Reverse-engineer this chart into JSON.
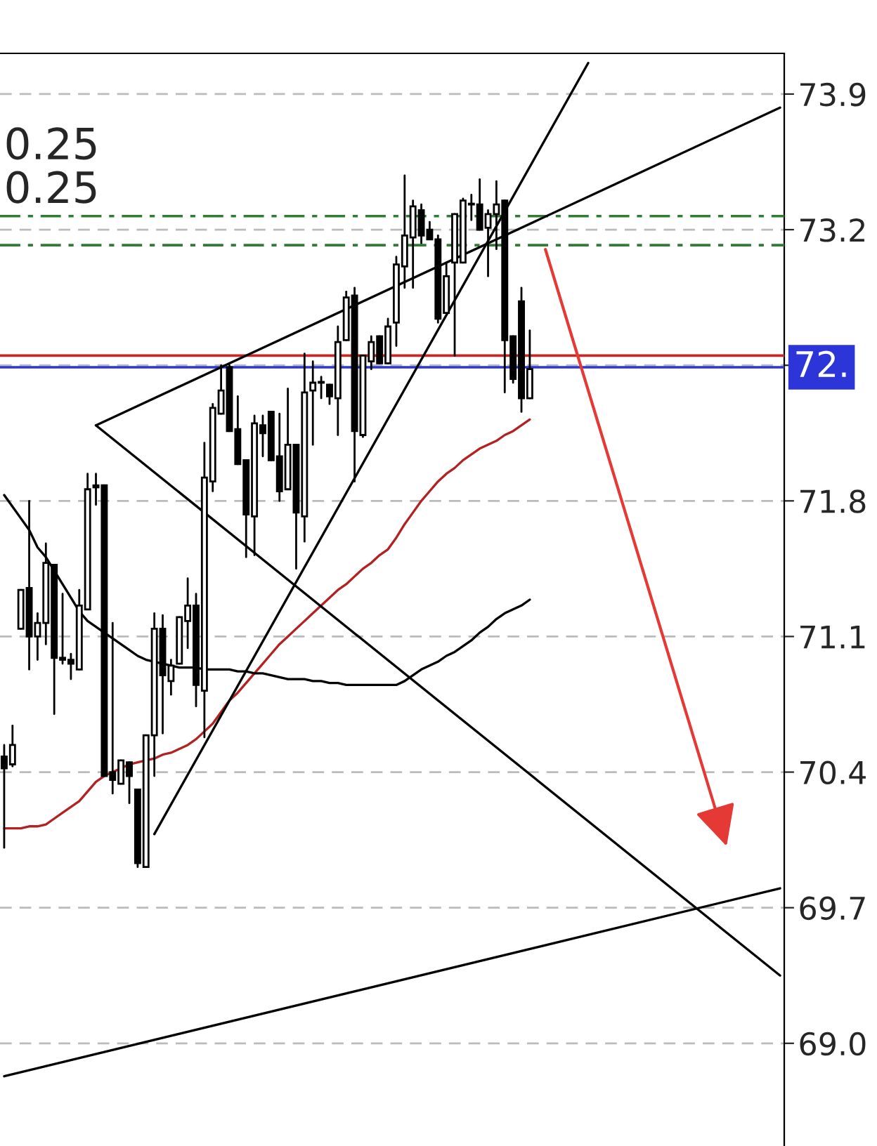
{
  "chart_data": {
    "type": "candlestick",
    "categories": [
      null,
      null,
      null,
      null,
      null,
      null,
      null,
      null,
      null,
      null,
      null,
      null,
      null,
      null,
      null,
      null,
      null,
      null,
      null,
      null,
      null,
      null,
      null,
      null,
      null,
      null,
      null,
      null,
      null,
      null,
      null,
      null,
      null,
      null,
      null,
      null,
      null,
      null,
      null,
      null,
      null,
      null,
      null,
      null,
      null,
      null,
      null,
      null,
      null,
      null,
      null,
      null,
      null,
      null,
      null,
      null,
      null,
      null,
      null,
      null,
      null,
      null,
      null,
      null,
      null,
      null,
      null,
      null,
      null,
      null,
      null,
      null,
      null,
      null,
      null,
      null,
      null,
      null,
      null,
      null,
      null,
      null,
      null,
      null,
      null,
      null,
      null,
      null,
      null,
      null,
      null,
      null,
      null,
      null
    ],
    "ohlc": [
      [
        70.48,
        70.54,
        70.01,
        70.42
      ],
      [
        70.44,
        70.64,
        70.43,
        70.54
      ],
      [
        71.14,
        71.34,
        71.14,
        71.34
      ],
      [
        71.35,
        71.8,
        70.93,
        71.1
      ],
      [
        71.1,
        71.22,
        70.98,
        71.17
      ],
      [
        71.17,
        71.58,
        71.06,
        71.48
      ],
      [
        71.47,
        71.47,
        70.7,
        70.99
      ],
      [
        70.99,
        71.32,
        70.96,
        70.98
      ],
      [
        70.98,
        71.01,
        70.88,
        70.96
      ],
      [
        70.93,
        71.34,
        70.93,
        71.26
      ],
      [
        71.24,
        71.94,
        71.24,
        71.86
      ],
      [
        71.87,
        71.94,
        71.78,
        71.88
      ],
      [
        71.88,
        71.88,
        70.38,
        70.38
      ],
      [
        70.4,
        71.17,
        70.29,
        70.36
      ],
      [
        70.34,
        70.46,
        70.34,
        70.46
      ],
      [
        70.45,
        70.45,
        70.24,
        70.38
      ],
      [
        70.31,
        70.31,
        69.91,
        69.93
      ],
      [
        69.91,
        70.59,
        69.91,
        70.59
      ],
      [
        70.59,
        71.22,
        70.38,
        71.14
      ],
      [
        71.14,
        71.21,
        70.6,
        70.9
      ],
      [
        70.87,
        70.98,
        70.8,
        70.95
      ],
      [
        70.96,
        71.2,
        70.96,
        71.2
      ],
      [
        71.18,
        71.4,
        71.04,
        71.26
      ],
      [
        71.26,
        71.32,
        70.74,
        70.85
      ],
      [
        70.82,
        72.1,
        70.58,
        71.92
      ],
      [
        71.9,
        72.3,
        71.85,
        72.28
      ],
      [
        72.25,
        72.5,
        72.25,
        72.37
      ],
      [
        72.49,
        72.5,
        72.16,
        72.16
      ],
      [
        72.17,
        72.34,
        71.99,
        71.99
      ],
      [
        72.01,
        72.01,
        71.51,
        71.73
      ],
      [
        71.72,
        72.24,
        71.52,
        72.2
      ],
      [
        72.19,
        72.24,
        72.03,
        72.15
      ],
      [
        72.26,
        72.26,
        72.01,
        72.01
      ],
      [
        72.03,
        72.25,
        71.8,
        71.85
      ],
      [
        71.86,
        72.38,
        71.86,
        72.09
      ],
      [
        72.09,
        72.09,
        71.45,
        71.74
      ],
      [
        71.72,
        72.56,
        71.59,
        72.36
      ],
      [
        72.37,
        72.52,
        72.09,
        72.41
      ],
      [
        72.41,
        72.44,
        72.33,
        72.41
      ],
      [
        72.4,
        72.4,
        72.3,
        72.34
      ],
      [
        72.33,
        72.7,
        72.14,
        72.62
      ],
      [
        72.63,
        72.88,
        72.63,
        72.85
      ],
      [
        72.86,
        72.9,
        71.9,
        72.16
      ],
      [
        72.14,
        72.55,
        72.13,
        72.55
      ],
      [
        72.52,
        72.65,
        72.48,
        72.62
      ],
      [
        72.65,
        72.65,
        72.51,
        72.51
      ],
      [
        72.51,
        72.74,
        72.51,
        72.7
      ],
      [
        72.72,
        73.06,
        72.6,
        73.02
      ],
      [
        73.01,
        73.48,
        72.9,
        73.17
      ],
      [
        73.16,
        73.35,
        72.9,
        73.32
      ],
      [
        73.3,
        73.33,
        73.13,
        73.17
      ],
      [
        73.2,
        73.24,
        73.15,
        73.15
      ],
      [
        73.15,
        73.17,
        72.72,
        72.74
      ],
      [
        72.77,
        73.03,
        72.77,
        72.96
      ],
      [
        73.03,
        73.28,
        72.55,
        73.28
      ],
      [
        73.03,
        73.36,
        73.03,
        73.35
      ],
      [
        73.33,
        73.38,
        73.25,
        73.33
      ],
      [
        73.33,
        73.46,
        73.2,
        73.2
      ],
      [
        73.21,
        73.3,
        72.96,
        73.28
      ],
      [
        73.28,
        73.45,
        73.1,
        73.33
      ],
      [
        73.35,
        73.35,
        72.36,
        72.63
      ],
      [
        72.65,
        72.65,
        72.41,
        72.43
      ],
      [
        72.83,
        72.9,
        72.26,
        72.33
      ],
      [
        72.33,
        72.68,
        72.33,
        72.48
      ],
      null,
      null,
      null,
      null,
      null,
      null,
      null,
      null,
      null,
      null,
      null,
      null,
      null,
      null,
      null,
      null,
      null,
      null,
      null,
      null,
      null,
      null,
      null,
      null,
      null,
      null,
      null,
      null,
      null,
      null
    ],
    "series": [
      {
        "type": "line",
        "color": "#b22222",
        "values": [
          70.11,
          70.11,
          70.11,
          70.12,
          70.12,
          70.13,
          70.16,
          70.19,
          70.22,
          70.25,
          70.3,
          70.35,
          70.38,
          70.4,
          70.42,
          70.44,
          70.45,
          70.46,
          70.47,
          70.49,
          70.5,
          70.52,
          70.54,
          70.57,
          70.61,
          70.65,
          70.71,
          70.77,
          70.81,
          70.86,
          70.91,
          70.96,
          71.01,
          71.06,
          71.1,
          71.14,
          71.18,
          71.22,
          71.26,
          71.3,
          71.34,
          71.37,
          71.41,
          71.45,
          71.48,
          71.52,
          71.55,
          71.61,
          71.68,
          71.74,
          71.8,
          71.85,
          71.9,
          71.94,
          71.97,
          72.01,
          72.04,
          72.07,
          72.09,
          72.11,
          72.14,
          72.16,
          72.19,
          72.22,
          null,
          null,
          null,
          null,
          null,
          null,
          null,
          null,
          null,
          null,
          null,
          null,
          null,
          null,
          null,
          null,
          null,
          null,
          null,
          null,
          null,
          null,
          null,
          null,
          null,
          null,
          null,
          null,
          null,
          null
        ]
      },
      {
        "type": "line",
        "color": "#000000",
        "values": [
          71.83,
          71.77,
          71.71,
          71.65,
          71.56,
          71.51,
          71.44,
          71.37,
          71.3,
          71.23,
          71.18,
          71.15,
          71.12,
          71.09,
          71.06,
          71.03,
          71.0,
          70.98,
          70.97,
          70.96,
          70.95,
          70.94,
          70.94,
          70.94,
          70.93,
          70.93,
          70.93,
          70.93,
          70.92,
          70.92,
          70.91,
          70.91,
          70.9,
          70.89,
          70.88,
          70.88,
          70.88,
          70.87,
          70.87,
          70.86,
          70.86,
          70.85,
          70.85,
          70.85,
          70.85,
          70.85,
          70.85,
          70.85,
          70.87,
          70.9,
          70.93,
          70.95,
          70.97,
          71.0,
          71.02,
          71.05,
          71.08,
          71.12,
          71.15,
          71.19,
          71.22,
          71.24,
          71.26,
          71.29,
          null,
          null,
          null,
          null,
          null,
          null,
          null,
          null,
          null,
          null,
          null,
          null,
          null,
          null,
          null,
          null,
          null,
          null,
          null,
          null,
          null,
          null,
          null,
          null,
          null,
          null,
          null,
          null,
          null,
          null
        ]
      },
      {
        "type": "line",
        "color": "#000000",
        "values": [
          null,
          null,
          null,
          null,
          null,
          null,
          null,
          null,
          null,
          null,
          null,
          72.19,
          null,
          null,
          null,
          null,
          null,
          null,
          null,
          null,
          null,
          null,
          null,
          null,
          null,
          null,
          null,
          null,
          null,
          null,
          null,
          null,
          null,
          null,
          null,
          null,
          null,
          null,
          null,
          null,
          null,
          null,
          null,
          null,
          null,
          null,
          null,
          null,
          null,
          null,
          null,
          null,
          null,
          null,
          null,
          null,
          null,
          null,
          null,
          null,
          null,
          null,
          null,
          null,
          null,
          null,
          null,
          null,
          null,
          null,
          null,
          null,
          null,
          null,
          null,
          null,
          null,
          null,
          null,
          null,
          null,
          null,
          null,
          null,
          null,
          null,
          null,
          null,
          null,
          null,
          null,
          null,
          null,
          73.83
        ]
      },
      {
        "type": "line",
        "color": "#000000",
        "values": [
          null,
          null,
          null,
          null,
          null,
          null,
          null,
          null,
          null,
          null,
          null,
          72.19,
          null,
          null,
          null,
          null,
          null,
          null,
          null,
          null,
          null,
          null,
          null,
          null,
          null,
          null,
          null,
          null,
          null,
          null,
          null,
          null,
          null,
          null,
          null,
          null,
          null,
          null,
          null,
          null,
          null,
          null,
          null,
          null,
          null,
          null,
          null,
          null,
          null,
          null,
          null,
          null,
          null,
          null,
          null,
          null,
          null,
          null,
          null,
          null,
          null,
          null,
          null,
          null,
          null,
          null,
          null,
          null,
          null,
          null,
          null,
          null,
          null,
          null,
          null,
          null,
          null,
          null,
          null,
          null,
          null,
          null,
          null,
          null,
          null,
          null,
          null,
          null,
          null,
          null,
          null,
          null,
          null,
          69.35
        ]
      },
      {
        "type": "line",
        "color": "#000000",
        "values": [
          null,
          null,
          null,
          null,
          null,
          null,
          null,
          null,
          null,
          null,
          null,
          null,
          null,
          null,
          null,
          null,
          null,
          null,
          70.08,
          null,
          null,
          null,
          null,
          null,
          null,
          null,
          null,
          null,
          null,
          null,
          null,
          null,
          null,
          null,
          null,
          null,
          null,
          null,
          null,
          null,
          null,
          null,
          null,
          null,
          null,
          null,
          null,
          null,
          null,
          null,
          null,
          null,
          null,
          null,
          null,
          null,
          null,
          null,
          null,
          null,
          null,
          null,
          null,
          null,
          null,
          null,
          null,
          null,
          null,
          null,
          74.06,
          null,
          null,
          null,
          null,
          null,
          null,
          null,
          null,
          null,
          null,
          null,
          null,
          null,
          null,
          null,
          null,
          null,
          null,
          null,
          null,
          null,
          null,
          null
        ]
      },
      {
        "type": "line",
        "color": "#000000",
        "values": [
          68.83,
          null,
          null,
          null,
          null,
          null,
          null,
          null,
          null,
          null,
          null,
          null,
          null,
          null,
          null,
          null,
          null,
          null,
          null,
          null,
          null,
          null,
          null,
          null,
          null,
          null,
          null,
          null,
          null,
          null,
          null,
          null,
          null,
          null,
          null,
          null,
          null,
          null,
          null,
          null,
          null,
          null,
          null,
          null,
          null,
          null,
          null,
          null,
          null,
          null,
          null,
          null,
          null,
          null,
          null,
          null,
          null,
          null,
          null,
          null,
          null,
          null,
          null,
          null,
          null,
          null,
          null,
          null,
          null,
          null,
          null,
          null,
          null,
          null,
          null,
          null,
          null,
          null,
          null,
          null,
          null,
          null,
          null,
          null,
          null,
          null,
          null,
          null,
          null,
          null,
          null,
          null,
          null,
          69.8
        ]
      }
    ],
    "ylim": [
      68.47,
      74.11
    ],
    "yticks": [
      {
        "value": 69.0,
        "label": "69.0"
      },
      69.7,
      70.4,
      71.1,
      71.8,
      {
        "value": 72.5,
        "label": null
      },
      73.2,
      73.9
    ],
    "tick_labels": "y",
    "grid": "y",
    "ref_lines": [
      {
        "axis": "y",
        "value": 73.27,
        "label": null,
        "color": "#2e7d32",
        "line_style": "dashed"
      },
      {
        "axis": "y",
        "value": 73.12,
        "label": null,
        "color": "#2e7d32",
        "line_style": "dashed"
      },
      {
        "axis": "y",
        "value": 72.55,
        "label": null,
        "color": "#c62828",
        "line_style": "solid"
      },
      {
        "axis": "y",
        "value": 72.49,
        "label": "72.",
        "color": "#2b35d8",
        "line_style": "solid"
      }
    ],
    "annotations": [
      "0.25",
      "0.25"
    ]
  }
}
